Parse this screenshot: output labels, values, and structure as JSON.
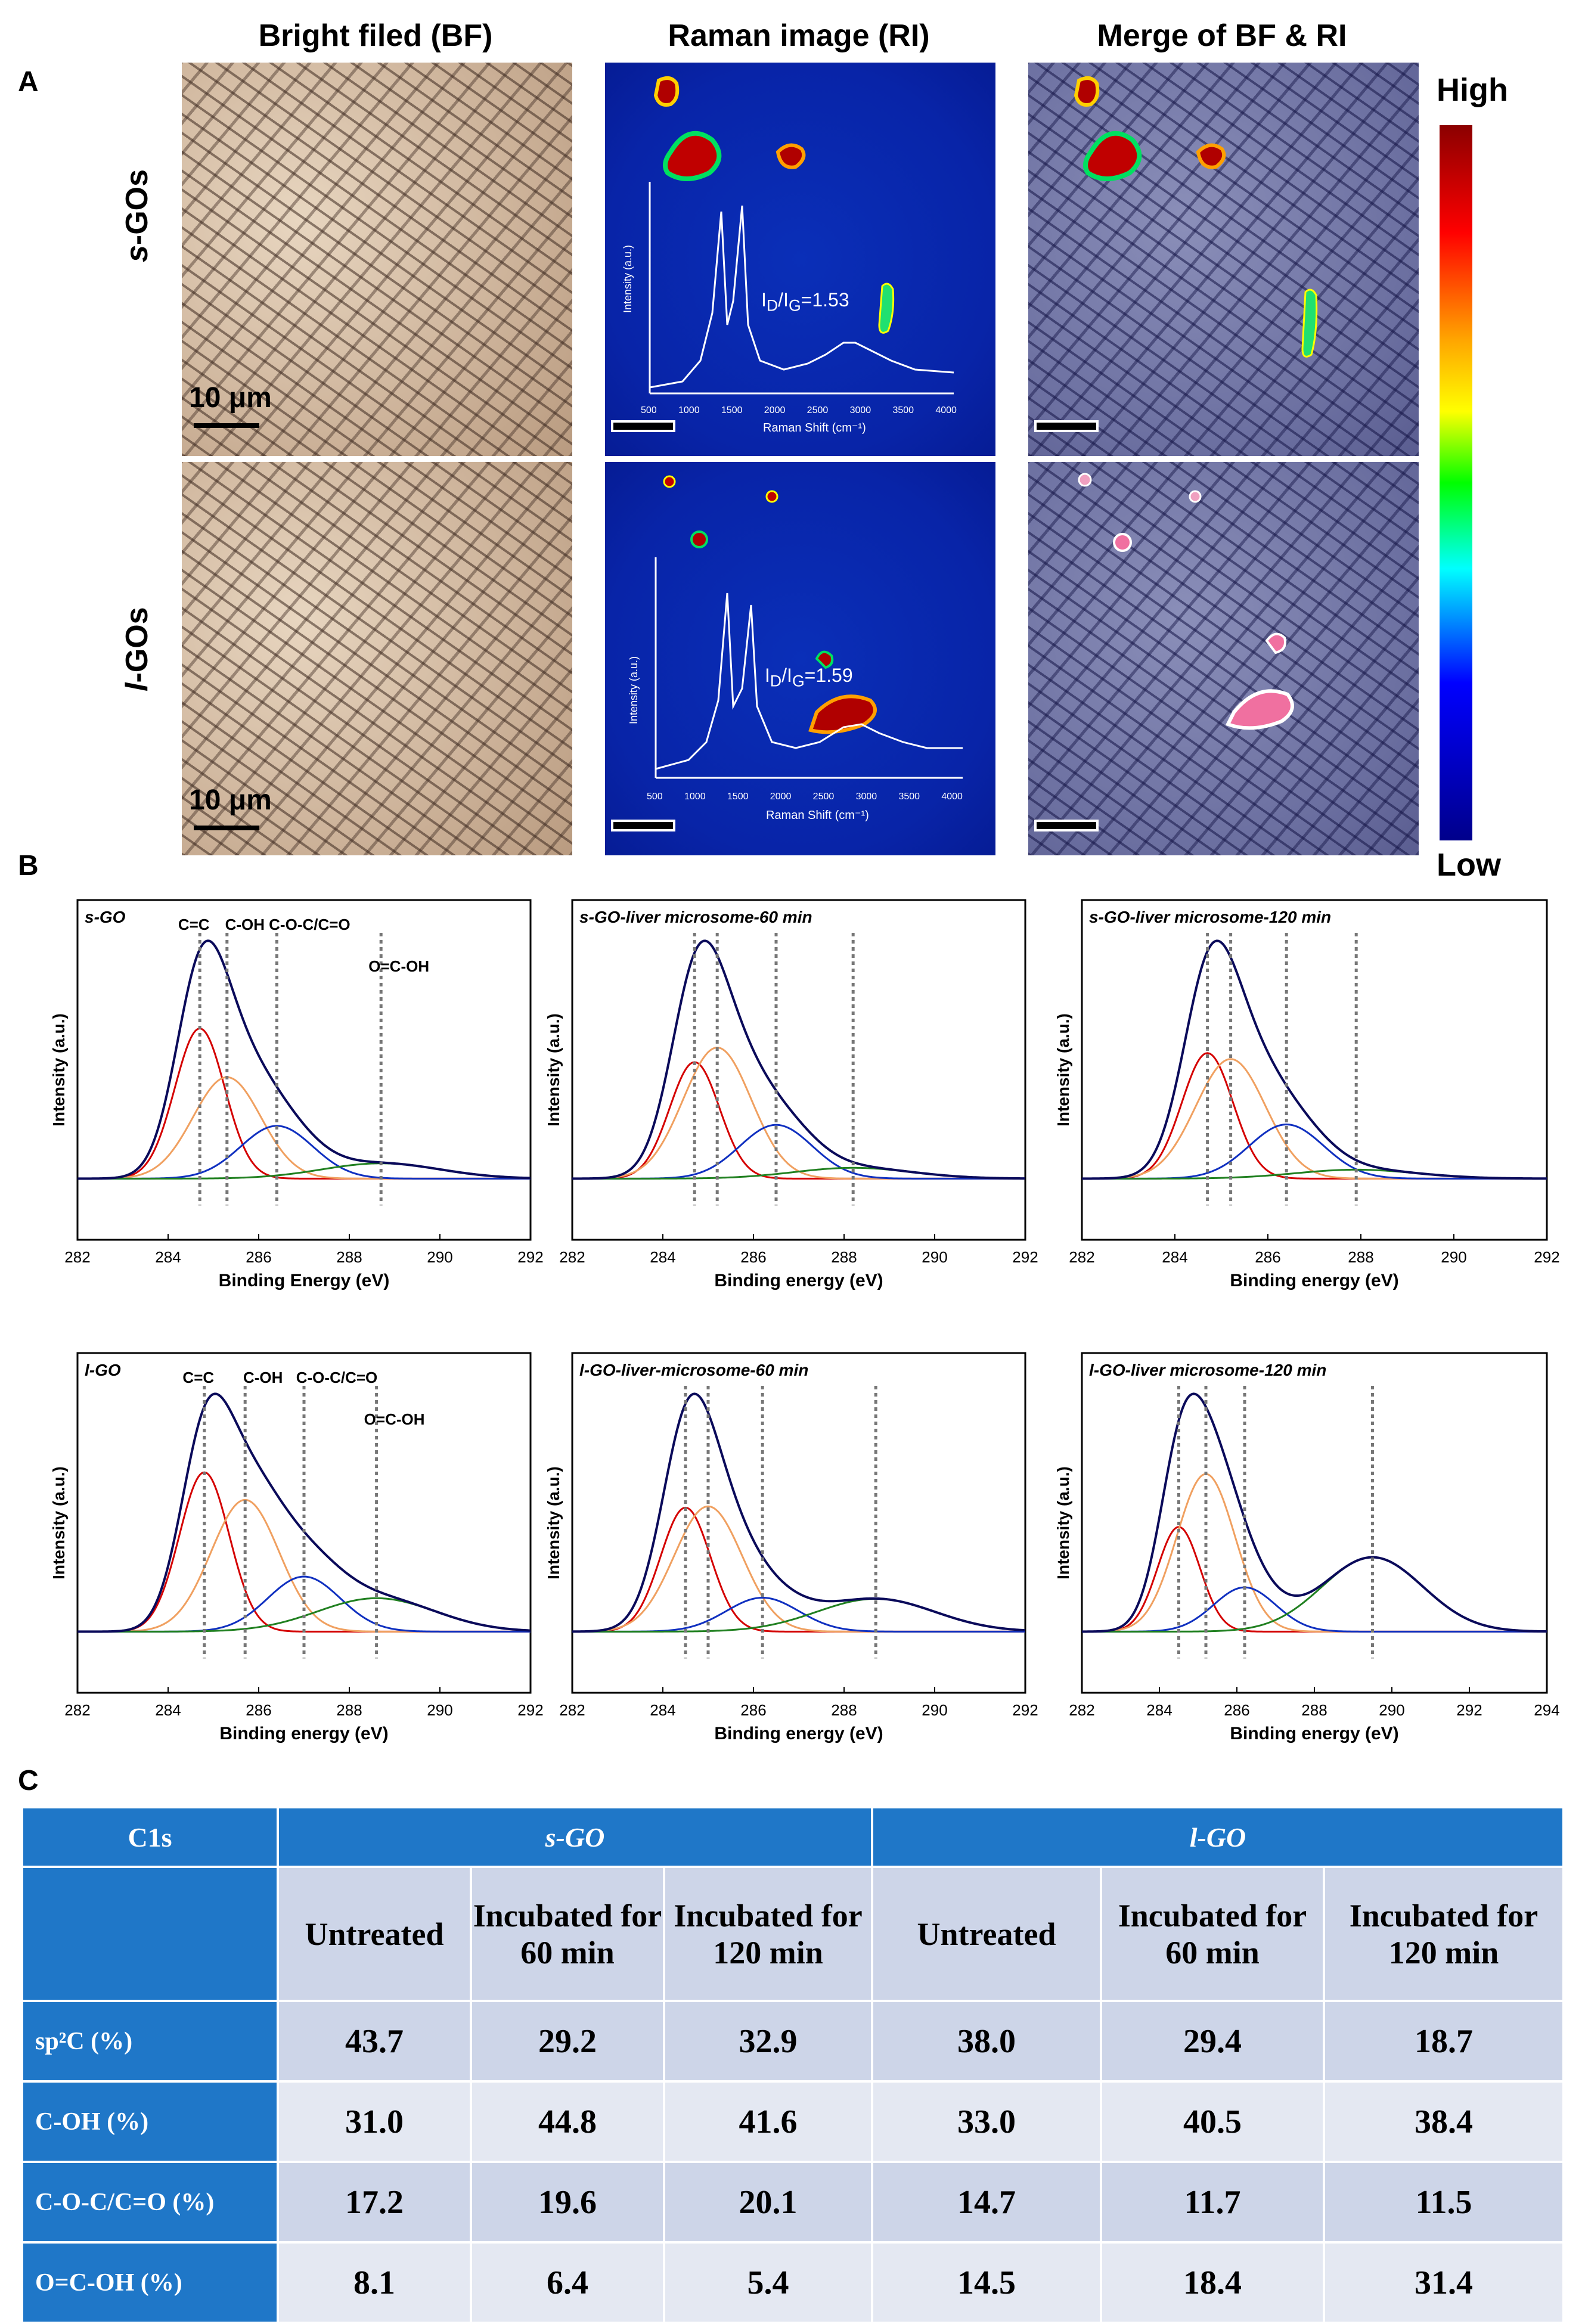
{
  "panelA": {
    "letter": "A",
    "columns": [
      "Bright filed (BF)",
      "Raman image (RI)",
      "Merge of BF & RI"
    ],
    "rows": [
      {
        "label_prefix": "s",
        "label_suffix": "-GOs",
        "scale": "10 μm",
        "ratio_prefix": "I",
        "ratio_sub1": "D",
        "ratio_mid": "/I",
        "ratio_sub2": "G",
        "ratio_value": "=1.53"
      },
      {
        "label_prefix": "l",
        "label_suffix": "-GOs",
        "scale": "10 μm",
        "ratio_prefix": "I",
        "ratio_sub1": "D",
        "ratio_mid": "/I",
        "ratio_sub2": "G",
        "ratio_value": "=1.59"
      }
    ],
    "inset": {
      "ylabel": "Intensity (a.u.)",
      "xlabel": "Raman Shift (cm⁻¹)",
      "xticks": [
        "500",
        "1000",
        "1500",
        "2000",
        "2500",
        "3000",
        "3500",
        "4000"
      ]
    },
    "colorbar": {
      "high": "High",
      "low": "Low"
    }
  },
  "panelB": {
    "letter": "B",
    "ylabel": "Intensity (a.u.)",
    "peak_labels": [
      "C=C",
      "C-OH",
      "C-O-C/C=O",
      "O=C-OH"
    ],
    "plots": [
      {
        "title": "s-GO",
        "xlabel": "Binding Energy (eV)",
        "xticks": [
          "282",
          "284",
          "286",
          "288",
          "290",
          "292"
        ]
      },
      {
        "title": "s-GO-liver microsome-60 min",
        "xlabel": "Binding energy (eV)",
        "xticks": [
          "282",
          "284",
          "286",
          "288",
          "290",
          "292"
        ]
      },
      {
        "title": "s-GO-liver microsome-120 min",
        "xlabel": "Binding energy (eV)",
        "xticks": [
          "282",
          "284",
          "286",
          "288",
          "290",
          "292"
        ]
      },
      {
        "title": "l-GO",
        "xlabel": "Binding energy (eV)",
        "xticks": [
          "282",
          "284",
          "286",
          "288",
          "290",
          "292"
        ]
      },
      {
        "title": "l-GO-liver-microsome-60 min",
        "xlabel": "Binding energy (eV)",
        "xticks": [
          "282",
          "284",
          "286",
          "288",
          "290",
          "292"
        ]
      },
      {
        "title": "l-GO-liver microsome-120 min",
        "xlabel": "Binding energy (eV)",
        "xticks": [
          "282",
          "284",
          "286",
          "288",
          "290",
          "292",
          "294"
        ]
      }
    ]
  },
  "panelC": {
    "letter": "C",
    "corner": "C1s",
    "groups": [
      "s-GO",
      "l-GO"
    ],
    "subheaders": [
      "Untreated",
      "Incubated for 60 min",
      "Incubated for 120 min",
      "Untreated",
      "Incubated for 60 min",
      "Incubated for 120 min"
    ],
    "rows": [
      {
        "label": "sp²C (%)",
        "values": [
          "43.7",
          "29.2",
          "32.9",
          "38.0",
          "29.4",
          "18.7"
        ]
      },
      {
        "label": "C-OH (%)",
        "values": [
          "31.0",
          "44.8",
          "41.6",
          "33.0",
          "40.5",
          "38.4"
        ]
      },
      {
        "label": "C-O-C/C=O (%)",
        "values": [
          "17.2",
          "19.6",
          "20.1",
          "14.7",
          "11.7",
          "11.5"
        ]
      },
      {
        "label": "O=C-OH (%)",
        "values": [
          "8.1",
          "6.4",
          "5.4",
          "14.5",
          "18.4",
          "31.4"
        ]
      }
    ]
  },
  "chart_data": [
    {
      "type": "line",
      "title": "s-GO",
      "xlabel": "Binding Energy (eV)",
      "ylabel": "Intensity (a.u.)",
      "xlim": [
        282,
        292
      ],
      "peak_positions": [
        284.7,
        285.3,
        286.4,
        288.7
      ],
      "component_composition_percent": {
        "sp2C": 43.7,
        "C-OH": 31.0,
        "C-O-C/C=O": 17.2,
        "O=C-OH": 8.1
      }
    },
    {
      "type": "line",
      "title": "s-GO-liver microsome-60 min",
      "xlabel": "Binding energy (eV)",
      "ylabel": "Intensity (a.u.)",
      "xlim": [
        282,
        292
      ],
      "peak_positions": [
        284.7,
        285.2,
        286.5,
        288.2
      ],
      "component_composition_percent": {
        "sp2C": 29.2,
        "C-OH": 44.8,
        "C-O-C/C=O": 19.6,
        "O=C-OH": 6.4
      }
    },
    {
      "type": "line",
      "title": "s-GO-liver microsome-120 min",
      "xlabel": "Binding energy (eV)",
      "ylabel": "Intensity (a.u.)",
      "xlim": [
        282,
        292
      ],
      "peak_positions": [
        284.7,
        285.2,
        286.4,
        287.9
      ],
      "component_composition_percent": {
        "sp2C": 32.9,
        "C-OH": 41.6,
        "C-O-C/C=O": 20.1,
        "O=C-OH": 5.4
      }
    },
    {
      "type": "line",
      "title": "l-GO",
      "xlabel": "Binding energy (eV)",
      "ylabel": "Intensity (a.u.)",
      "xlim": [
        282,
        292
      ],
      "peak_positions": [
        284.8,
        285.7,
        287.0,
        288.6
      ],
      "component_composition_percent": {
        "sp2C": 38.0,
        "C-OH": 33.0,
        "C-O-C/C=O": 14.7,
        "O=C-OH": 14.5
      }
    },
    {
      "type": "line",
      "title": "l-GO-liver-microsome-60 min",
      "xlabel": "Binding energy (eV)",
      "ylabel": "Intensity (a.u.)",
      "xlim": [
        282,
        292
      ],
      "peak_positions": [
        284.5,
        285.0,
        286.2,
        288.7
      ],
      "component_composition_percent": {
        "sp2C": 29.4,
        "C-OH": 40.5,
        "C-O-C/C=O": 11.7,
        "O=C-OH": 18.4
      }
    },
    {
      "type": "line",
      "title": "l-GO-liver microsome-120 min",
      "xlabel": "Binding energy (eV)",
      "ylabel": "Intensity (a.u.)",
      "xlim": [
        282,
        294
      ],
      "peak_positions": [
        284.5,
        285.2,
        286.2,
        289.5
      ],
      "component_composition_percent": {
        "sp2C": 18.7,
        "C-OH": 38.4,
        "C-O-C/C=O": 11.5,
        "O=C-OH": 31.4
      }
    }
  ]
}
